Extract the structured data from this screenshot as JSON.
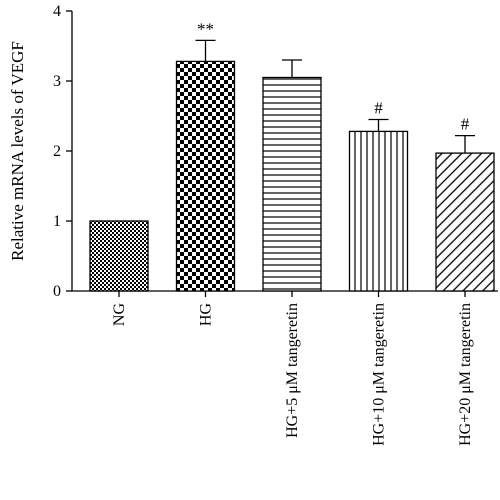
{
  "chart_data": {
    "type": "bar",
    "title": "",
    "xlabel": "",
    "ylabel": "Relative mRNA levels of VEGF",
    "ylim": [
      0,
      4
    ],
    "yticks": [
      0,
      1,
      2,
      3,
      4
    ],
    "categories": [
      "NG",
      "HG",
      "HG+5 μM tangeretin",
      "HG+10 μM tangeretin",
      "HG+20 μM tangeretin"
    ],
    "values": [
      1.0,
      3.28,
      3.05,
      2.28,
      1.97
    ],
    "errors": [
      0,
      0.3,
      0.25,
      0.17,
      0.25
    ],
    "annotations": [
      "",
      "**",
      "",
      "#",
      "#"
    ],
    "patterns": [
      "fine-checker",
      "large-checker",
      "horizontal-lines",
      "vertical-lines",
      "diagonal-lines"
    ],
    "grid": false,
    "legend": "none"
  }
}
